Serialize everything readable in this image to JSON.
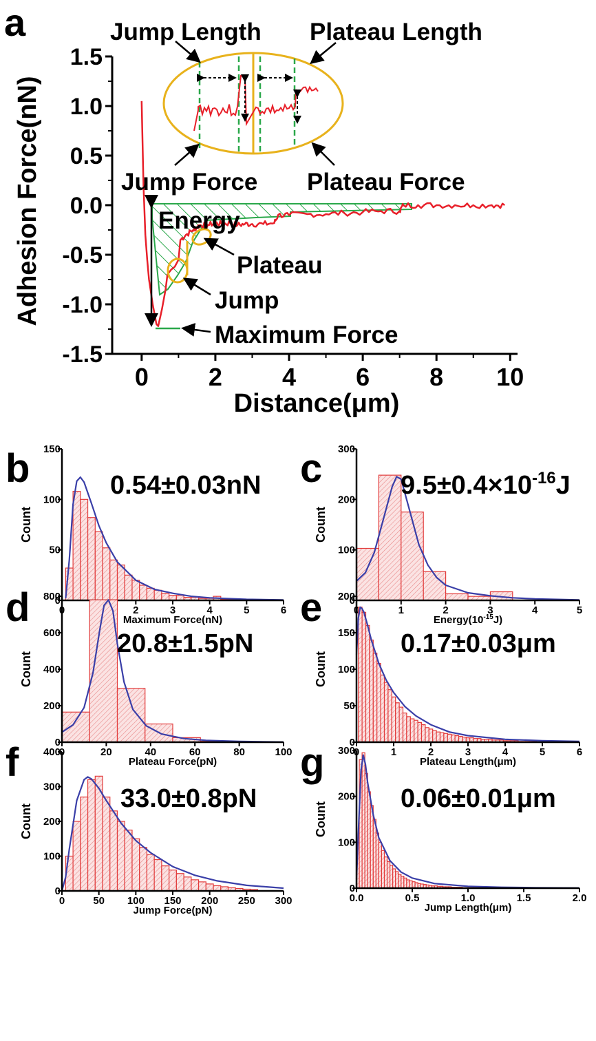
{
  "colors": {
    "curve": "#e8202a",
    "bar_stroke": "#e23b3b",
    "bar_fill": "#f7c9c9",
    "fit": "#3a3fa8",
    "annotation": "#e8b21c",
    "guide": "#2aa84a",
    "text": "#000000"
  },
  "panel_a": {
    "letter": "a",
    "xlabel": "Distance(μm)",
    "ylabel": "Adhesion Force(nN)",
    "xticks": [
      "0",
      "2",
      "4",
      "6",
      "8",
      "10"
    ],
    "yticks": [
      "1.5",
      "1.0",
      "0.5",
      "0.0",
      "-0.5",
      "-1.0",
      "-1.5"
    ],
    "annotations": {
      "jump_length": "Jump Length",
      "plateau_length": "Plateau Length",
      "jump_force": "Jump Force",
      "plateau_force": "Plateau Force",
      "energy": "Energy",
      "plateau": "Plateau",
      "jump": "Jump",
      "maximum_force": "Maximum Force"
    }
  },
  "panels": [
    {
      "letter": "b",
      "xlabel": "Maximum Force(nN)",
      "ylabel": "Count",
      "stat": "0.54±0.03nN",
      "xticks": [
        "0",
        "1",
        "2",
        "3",
        "4",
        "5",
        "6"
      ],
      "yticks": [
        "0",
        "50",
        "100",
        "150"
      ]
    },
    {
      "letter": "c",
      "xlabel": "Energy(10",
      "xlabel_sup": "-15",
      "xlabel_end": "J)",
      "ylabel": "Count",
      "stat": "9.5±0.4×10",
      "stat_sup": "-16",
      "stat_end": "J",
      "xticks": [
        "0",
        "1",
        "2",
        "3",
        "4",
        "5"
      ],
      "yticks": [
        "0",
        "100",
        "200",
        "300"
      ]
    },
    {
      "letter": "d",
      "xlabel": "Plateau Force(pN)",
      "ylabel": "Count",
      "stat": "20.8±1.5pN",
      "xticks": [
        "0",
        "20",
        "40",
        "60",
        "80",
        "100"
      ],
      "yticks": [
        "0",
        "200",
        "400",
        "600",
        "800"
      ]
    },
    {
      "letter": "e",
      "xlabel": "Plateau Length(μm)",
      "ylabel": "Count",
      "stat": "0.17±0.03μm",
      "xticks": [
        "0",
        "1",
        "2",
        "3",
        "4",
        "5",
        "6"
      ],
      "yticks": [
        "0",
        "50",
        "100",
        "150",
        "200"
      ]
    },
    {
      "letter": "f",
      "xlabel": "Jump Force(pN)",
      "ylabel": "Count",
      "stat": "33.0±0.8pN",
      "xticks": [
        "0",
        "50",
        "100",
        "150",
        "200",
        "250",
        "300"
      ],
      "yticks": [
        "0",
        "100",
        "200",
        "300",
        "400"
      ]
    },
    {
      "letter": "g",
      "xlabel": "Jump Length(μm)",
      "ylabel": "Count",
      "stat": "0.06±0.01μm",
      "xticks": [
        "0.0",
        "0.5",
        "1.0",
        "1.5",
        "2.0"
      ],
      "yticks": [
        "0",
        "100",
        "200",
        "300"
      ]
    }
  ],
  "chart_data": [
    {
      "type": "line",
      "panel": "a",
      "xlabel": "Distance(μm)",
      "ylabel": "Adhesion Force(nN)",
      "xlim": [
        -0.8,
        10.2
      ],
      "ylim": [
        -1.5,
        1.5
      ],
      "series": [
        {
          "x": [
            0.0,
            0.05,
            0.1,
            0.15,
            0.2,
            0.3,
            0.4,
            0.45,
            0.55,
            0.65,
            0.7,
            0.8,
            0.9,
            1.0,
            1.05,
            1.2,
            1.4,
            1.5,
            1.6,
            1.8,
            2.0,
            2.2,
            2.4,
            2.6,
            2.8,
            3.0,
            3.3,
            3.6,
            3.7,
            4.0,
            4.5,
            5.0,
            5.5,
            6.0,
            6.5,
            7.0,
            7.1,
            7.5,
            8.0,
            8.5,
            9.0,
            9.5,
            9.85
          ],
          "y": [
            1.05,
            0.2,
            -0.3,
            -0.55,
            -0.75,
            -1.0,
            -1.2,
            -1.22,
            -1.05,
            -0.85,
            -0.7,
            -0.65,
            -0.62,
            -0.55,
            -0.35,
            -0.3,
            -0.25,
            -0.22,
            -0.2,
            -0.2,
            -0.18,
            -0.19,
            -0.18,
            -0.2,
            -0.19,
            -0.19,
            -0.19,
            -0.18,
            -0.1,
            -0.1,
            -0.09,
            -0.09,
            -0.08,
            -0.07,
            -0.06,
            -0.06,
            0.0,
            0.0,
            0.0,
            0.0,
            0.0,
            0.0,
            0.0
          ]
        }
      ]
    },
    {
      "type": "bar",
      "panel": "b",
      "xlabel": "Maximum Force(nN)",
      "ylabel": "Count",
      "xlim": [
        0,
        6
      ],
      "ylim": [
        0,
        150
      ],
      "bin_edges": [
        0.1,
        0.3,
        0.5,
        0.7,
        0.9,
        1.1,
        1.3,
        1.5,
        1.7,
        1.9,
        2.1,
        2.3,
        2.5,
        2.7,
        2.9,
        3.1,
        3.3,
        3.5,
        3.7,
        3.9,
        4.1,
        4.3,
        4.5,
        4.7,
        4.9
      ],
      "values": [
        32,
        108,
        100,
        82,
        68,
        52,
        40,
        35,
        25,
        20,
        15,
        12,
        10,
        7,
        5,
        5,
        3,
        3,
        2,
        2,
        4,
        1,
        1,
        1
      ],
      "fit": {
        "x": [
          0.1,
          0.2,
          0.3,
          0.4,
          0.5,
          0.6,
          0.8,
          1.0,
          1.2,
          1.5,
          2.0,
          2.5,
          3.0,
          3.5,
          4.0,
          5.0,
          6.0
        ],
        "y": [
          2,
          40,
          95,
          118,
          122,
          117,
          96,
          74,
          57,
          38,
          20,
          11,
          7,
          4,
          2.5,
          1,
          0.5
        ]
      }
    },
    {
      "type": "bar",
      "panel": "c",
      "xlabel": "Energy(10-15J)",
      "ylabel": "Count",
      "xlim": [
        0,
        5
      ],
      "ylim": [
        0,
        300
      ],
      "bin_edges": [
        0,
        0.5,
        1.0,
        1.5,
        2.0,
        2.5,
        3.0,
        3.5,
        4.0,
        4.5,
        5.0
      ],
      "values": [
        103,
        248,
        175,
        57,
        13,
        8,
        17,
        0,
        0,
        0
      ],
      "fit": {
        "x": [
          0,
          0.2,
          0.4,
          0.6,
          0.8,
          0.9,
          1.0,
          1.2,
          1.4,
          1.6,
          1.8,
          2.0,
          2.5,
          3.0,
          3.5,
          4.0,
          5.0
        ],
        "y": [
          38,
          55,
          95,
          160,
          225,
          245,
          240,
          175,
          110,
          70,
          45,
          30,
          15,
          9,
          5,
          3,
          1
        ]
      }
    },
    {
      "type": "bar",
      "panel": "d",
      "xlabel": "Plateau Force(pN)",
      "ylabel": "Count",
      "xlim": [
        0,
        100
      ],
      "ylim": [
        0,
        800
      ],
      "bin_edges": [
        0,
        12.5,
        25,
        37.5,
        50,
        62.5,
        75,
        87.5,
        100
      ],
      "values": [
        165,
        780,
        295,
        100,
        25,
        5,
        0,
        0
      ],
      "fit": {
        "x": [
          0,
          5,
          10,
          14,
          17,
          19,
          21,
          23,
          25,
          28,
          32,
          38,
          45,
          55,
          65,
          80,
          100
        ],
        "y": [
          55,
          95,
          190,
          380,
          610,
          750,
          780,
          720,
          540,
          330,
          180,
          90,
          45,
          20,
          10,
          4,
          1
        ]
      }
    },
    {
      "type": "bar",
      "panel": "e",
      "xlabel": "Plateau Length(μm)",
      "ylabel": "Count",
      "xlim": [
        0,
        6
      ],
      "ylim": [
        0,
        200
      ],
      "bin_edges": [
        0.05,
        0.15,
        0.25,
        0.35,
        0.45,
        0.55,
        0.65,
        0.75,
        0.85,
        0.95,
        1.05,
        1.15,
        1.25,
        1.35,
        1.45,
        1.55,
        1.65,
        1.75,
        1.85,
        1.95,
        2.05,
        2.15,
        2.25,
        2.35,
        2.45,
        2.55,
        2.65,
        2.75,
        2.85,
        2.95,
        3.05,
        3.15,
        3.25,
        3.35,
        3.45,
        3.55,
        3.65,
        3.75,
        3.85,
        3.95,
        4.05,
        4.15,
        4.25,
        4.35,
        4.45,
        4.55,
        4.65,
        4.75,
        4.85
      ],
      "values": [
        185,
        178,
        160,
        140,
        122,
        108,
        92,
        82,
        72,
        62,
        54,
        48,
        40,
        35,
        32,
        30,
        27,
        24,
        20,
        18,
        16,
        14,
        13,
        12,
        11,
        10,
        9,
        8,
        7,
        6,
        6,
        5,
        5,
        4,
        4,
        4,
        3,
        3,
        3,
        2,
        2,
        2,
        2,
        1,
        1,
        1,
        1,
        1
      ],
      "fit": {
        "x": [
          0,
          0.05,
          0.1,
          0.15,
          0.2,
          0.3,
          0.4,
          0.6,
          0.8,
          1.0,
          1.3,
          1.6,
          2.0,
          2.5,
          3.0,
          4.0,
          5.0,
          6.0
        ],
        "y": [
          120,
          170,
          185,
          183,
          178,
          160,
          140,
          108,
          85,
          68,
          49,
          36,
          24,
          14,
          9,
          4,
          2,
          1
        ]
      }
    },
    {
      "type": "bar",
      "panel": "f",
      "xlabel": "Jump Force(pN)",
      "ylabel": "Count",
      "xlim": [
        0,
        300
      ],
      "ylim": [
        0,
        400
      ],
      "bin_edges": [
        5,
        15,
        25,
        35,
        45,
        55,
        65,
        75,
        85,
        95,
        105,
        115,
        125,
        135,
        145,
        155,
        165,
        175,
        185,
        195,
        205,
        215,
        225,
        235,
        245,
        255,
        265
      ],
      "values": [
        100,
        200,
        270,
        320,
        330,
        270,
        230,
        200,
        175,
        150,
        125,
        105,
        90,
        72,
        60,
        50,
        40,
        32,
        26,
        20,
        15,
        12,
        9,
        7,
        5,
        4
      ],
      "fit": {
        "x": [
          0,
          5,
          10,
          20,
          30,
          35,
          40,
          50,
          60,
          80,
          100,
          120,
          150,
          180,
          210,
          250,
          300
        ],
        "y": [
          0,
          40,
          120,
          260,
          320,
          328,
          322,
          295,
          260,
          195,
          145,
          110,
          70,
          45,
          29,
          16,
          8
        ]
      }
    },
    {
      "type": "bar",
      "panel": "g",
      "xlabel": "Jump Length(μm)",
      "ylabel": "Count",
      "xlim": [
        0,
        2.0
      ],
      "ylim": [
        0,
        300
      ],
      "bin_edges": [
        0.0,
        0.025,
        0.05,
        0.075,
        0.1,
        0.125,
        0.15,
        0.175,
        0.2,
        0.225,
        0.25,
        0.275,
        0.3,
        0.325,
        0.35,
        0.375,
        0.4,
        0.425,
        0.45,
        0.475,
        0.5,
        0.525,
        0.55,
        0.575,
        0.6,
        0.625,
        0.65,
        0.675,
        0.7,
        0.725,
        0.75,
        0.775,
        0.8,
        0.825,
        0.85,
        0.875,
        0.9,
        0.925,
        0.95,
        0.975,
        1.0,
        1.05,
        1.1,
        1.15,
        1.2
      ],
      "values": [
        100,
        280,
        295,
        250,
        210,
        180,
        150,
        120,
        100,
        82,
        68,
        58,
        50,
        42,
        36,
        30,
        26,
        22,
        18,
        16,
        14,
        12,
        10,
        9,
        8,
        7,
        6,
        5,
        5,
        4,
        4,
        3,
        3,
        3,
        2,
        2,
        2,
        2,
        1,
        1,
        1,
        1,
        1,
        1
      ],
      "fit": {
        "x": [
          0,
          0.02,
          0.04,
          0.06,
          0.08,
          0.1,
          0.15,
          0.2,
          0.3,
          0.4,
          0.5,
          0.7,
          1.0,
          1.3,
          1.6,
          2.0
        ],
        "y": [
          20,
          140,
          255,
          290,
          270,
          230,
          160,
          110,
          60,
          35,
          22,
          10,
          4,
          2,
          1,
          0.5
        ]
      }
    }
  ]
}
